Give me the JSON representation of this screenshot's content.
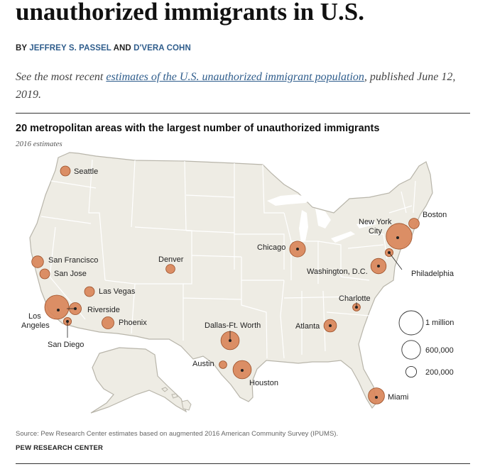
{
  "headline": "unauthorized immigrants in U.S.",
  "byline": {
    "prefix": "BY",
    "author1": "JEFFREY S. PASSEL",
    "conjunction": "AND",
    "author2": "D'VERA COHN"
  },
  "note": {
    "before": "See the most recent ",
    "link": "estimates of the U.S. unauthorized immigrant population",
    "after": ", published June 12, 2019."
  },
  "chart": {
    "title": "20 metropolitan areas with the largest number of unauthorized immigrants",
    "subtitle": "2016 estimates",
    "source": "Source: Pew Research Center estimates based on augmented 2016 American Community Survey (IPUMS).",
    "credit": "PEW RESEARCH CENTER"
  },
  "colors": {
    "bubble": "#d9855a",
    "bubble_stroke": "#9a4e27",
    "land": "#eeece4",
    "border": "#ffffff",
    "outline": "#b8b5aa",
    "water": "#ffffff"
  },
  "chart_data": {
    "type": "map-bubble",
    "title": "20 metropolitan areas with the largest number of unauthorized immigrants",
    "subtitle": "2016 estimates",
    "metros": [
      {
        "name": "New York City",
        "value": 1150000
      },
      {
        "name": "Los Angeles",
        "value": 1000000
      },
      {
        "name": "Houston",
        "value": 575000
      },
      {
        "name": "Dallas-Ft. Worth",
        "value": 575000
      },
      {
        "name": "Miami",
        "value": 450000
      },
      {
        "name": "Chicago",
        "value": 425000
      },
      {
        "name": "Washington, D.C.",
        "value": 400000
      },
      {
        "name": "Atlanta",
        "value": 275000
      },
      {
        "name": "Riverside",
        "value": 250000
      },
      {
        "name": "Phoenix",
        "value": 250000
      },
      {
        "name": "San Francisco",
        "value": 240000
      },
      {
        "name": "Boston",
        "value": 190000
      },
      {
        "name": "San Jose",
        "value": 170000
      },
      {
        "name": "Seattle",
        "value": 170000
      },
      {
        "name": "Las Vegas",
        "value": 170000
      },
      {
        "name": "Denver",
        "value": 140000
      },
      {
        "name": "Philadelphia",
        "value": 110000
      },
      {
        "name": "San Diego",
        "value": 110000
      },
      {
        "name": "Charlotte",
        "value": 100000
      },
      {
        "name": "Austin",
        "value": 100000
      }
    ],
    "legend": [
      {
        "label": "1 million",
        "value": 1000000
      },
      {
        "label": "600,000",
        "value": 600000
      },
      {
        "label": "200,000",
        "value": 200000
      }
    ]
  }
}
